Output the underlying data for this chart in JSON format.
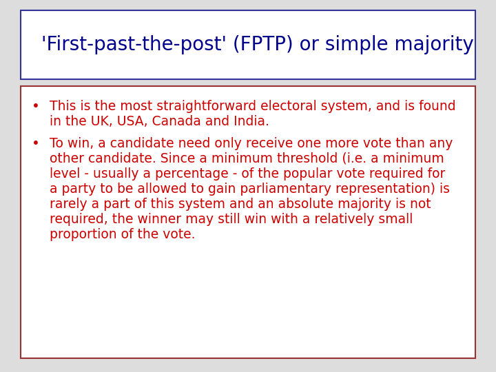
{
  "title": "'First-past-the-post' (FPTP) or simple majority",
  "title_color": "#00008B",
  "title_fontsize": 20,
  "title_fontweight": "normal",
  "bullet1_lines": [
    "This is the most straightforward electoral system, and is found",
    "in the UK, USA, Canada and India."
  ],
  "bullet2_lines": [
    "To win, a candidate need only receive one more vote than any",
    "other candidate. Since a minimum threshold (i.e. a minimum",
    "level - usually a percentage - of the popular vote required for",
    "a party to be allowed to gain parliamentary representation) is",
    "rarely a part of this system and an absolute majority is not",
    "required, the winner may still win with a relatively small",
    "proportion of the vote."
  ],
  "bullet_color": "#CC0000",
  "bullet_fontsize": 13.5,
  "bg_color": "#FFFFFF",
  "title_border_color": "#333399",
  "content_border_color": "#993333",
  "outer_bg": "#DDDDDD"
}
